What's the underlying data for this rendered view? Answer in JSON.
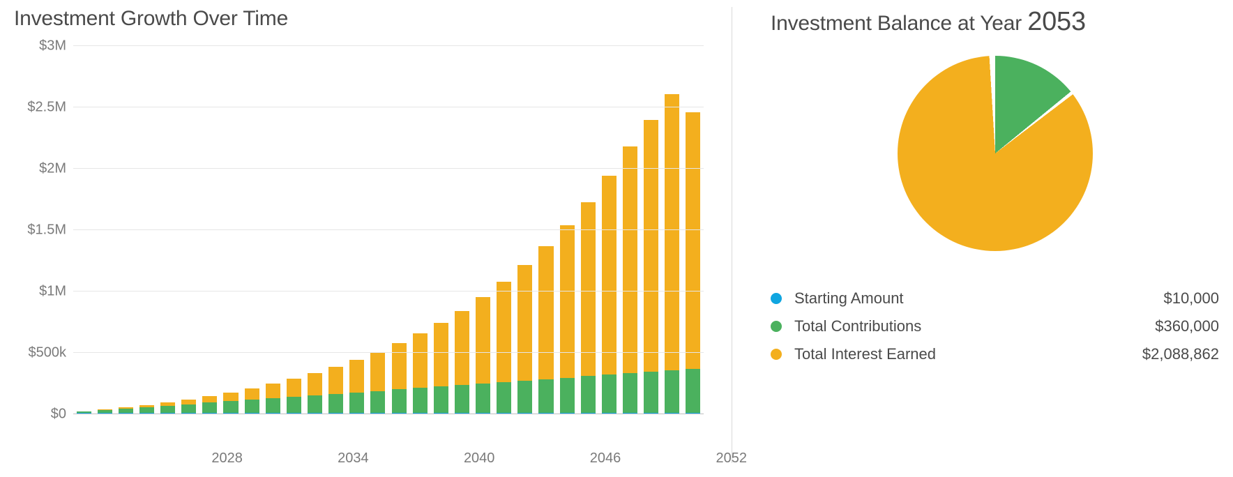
{
  "left": {
    "title": "Investment Growth Over Time",
    "chart": {
      "type": "stacked-bar",
      "background_color": "#ffffff",
      "grid_color": "#e6e6e6",
      "axis_text_color": "#7a7a7a",
      "start_year": 2024,
      "end_year": 2053,
      "ylim": [
        0,
        3000000
      ],
      "y_ticks": [
        {
          "value": 0,
          "label": "$0"
        },
        {
          "value": 500000,
          "label": "$500k"
        },
        {
          "value": 1000000,
          "label": "$1M"
        },
        {
          "value": 1500000,
          "label": "$1.5M"
        },
        {
          "value": 2000000,
          "label": "$2M"
        },
        {
          "value": 2500000,
          "label": "$2.5M"
        },
        {
          "value": 3000000,
          "label": "$3M"
        }
      ],
      "x_ticks": [
        2028,
        2034,
        2040,
        2046,
        2052
      ],
      "bar_gap_ratio": 0.3,
      "series_colors": {
        "starting": "#0fa5e0",
        "contributions": "#4bb15e",
        "interest": "#f3af1e"
      },
      "bars": [
        {
          "year": 2024,
          "starting": 10000,
          "contributions": 12000,
          "interest": 1600
        },
        {
          "year": 2025,
          "starting": 10000,
          "contributions": 24000,
          "interest": 5000
        },
        {
          "year": 2026,
          "starting": 10000,
          "contributions": 36000,
          "interest": 10500
        },
        {
          "year": 2027,
          "starting": 10000,
          "contributions": 48000,
          "interest": 18000
        },
        {
          "year": 2028,
          "starting": 10000,
          "contributions": 60000,
          "interest": 28000
        },
        {
          "year": 2029,
          "starting": 10000,
          "contributions": 72000,
          "interest": 40000
        },
        {
          "year": 2030,
          "starting": 10000,
          "contributions": 84000,
          "interest": 55000
        },
        {
          "year": 2031,
          "starting": 10000,
          "contributions": 96000,
          "interest": 73000
        },
        {
          "year": 2032,
          "starting": 10000,
          "contributions": 108000,
          "interest": 94000
        },
        {
          "year": 2033,
          "starting": 10000,
          "contributions": 120000,
          "interest": 119000
        },
        {
          "year": 2034,
          "starting": 10000,
          "contributions": 132000,
          "interest": 148000
        },
        {
          "year": 2035,
          "starting": 10000,
          "contributions": 144000,
          "interest": 182000
        },
        {
          "year": 2036,
          "starting": 10000,
          "contributions": 156000,
          "interest": 221000
        },
        {
          "year": 2037,
          "starting": 10000,
          "contributions": 168000,
          "interest": 266000
        },
        {
          "year": 2038,
          "starting": 10000,
          "contributions": 180000,
          "interest": 317000
        },
        {
          "year": 2039,
          "starting": 10000,
          "contributions": 192000,
          "interest": 376000
        },
        {
          "year": 2040,
          "starting": 10000,
          "contributions": 204000,
          "interest": 443000
        },
        {
          "year": 2041,
          "starting": 10000,
          "contributions": 216000,
          "interest": 519000
        },
        {
          "year": 2042,
          "starting": 10000,
          "contributions": 228000,
          "interest": 606000
        },
        {
          "year": 2043,
          "starting": 10000,
          "contributions": 240000,
          "interest": 704000
        },
        {
          "year": 2044,
          "starting": 10000,
          "contributions": 252000,
          "interest": 815000
        },
        {
          "year": 2045,
          "starting": 10000,
          "contributions": 264000,
          "interest": 940000
        },
        {
          "year": 2046,
          "starting": 10000,
          "contributions": 276000,
          "interest": 1082000
        },
        {
          "year": 2047,
          "starting": 10000,
          "contributions": 288000,
          "interest": 1241000
        },
        {
          "year": 2048,
          "starting": 10000,
          "contributions": 300000,
          "interest": 1420000
        },
        {
          "year": 2049,
          "starting": 10000,
          "contributions": 312000,
          "interest": 1622000
        },
        {
          "year": 2050,
          "starting": 10000,
          "contributions": 324000,
          "interest": 1848000
        },
        {
          "year": 2051,
          "starting": 10000,
          "contributions": 336000,
          "interest": 2050000
        },
        {
          "year": 2052,
          "starting": 10000,
          "contributions": 348000,
          "interest": 2250000
        },
        {
          "year": 2053,
          "starting": 10000,
          "contributions": 360000,
          "interest": 2088862
        }
      ]
    }
  },
  "right": {
    "title_prefix": "Investment Balance at Year ",
    "title_year": "2053",
    "pie": {
      "type": "pie",
      "gap_deg": 2,
      "gap_color": "#ffffff",
      "slices": [
        {
          "key": "starting",
          "value": 10000,
          "color": "#0fa5e0"
        },
        {
          "key": "contributions",
          "value": 360000,
          "color": "#4bb15e"
        },
        {
          "key": "interest",
          "value": 2088862,
          "color": "#f3af1e"
        }
      ]
    },
    "legend": [
      {
        "key": "starting",
        "label": "Starting Amount",
        "value": "$10,000",
        "color": "#0fa5e0"
      },
      {
        "key": "contributions",
        "label": "Total Contributions",
        "value": "$360,000",
        "color": "#4bb15e"
      },
      {
        "key": "interest",
        "label": "Total Interest Earned",
        "value": "$2,088,862",
        "color": "#f3af1e"
      }
    ]
  }
}
